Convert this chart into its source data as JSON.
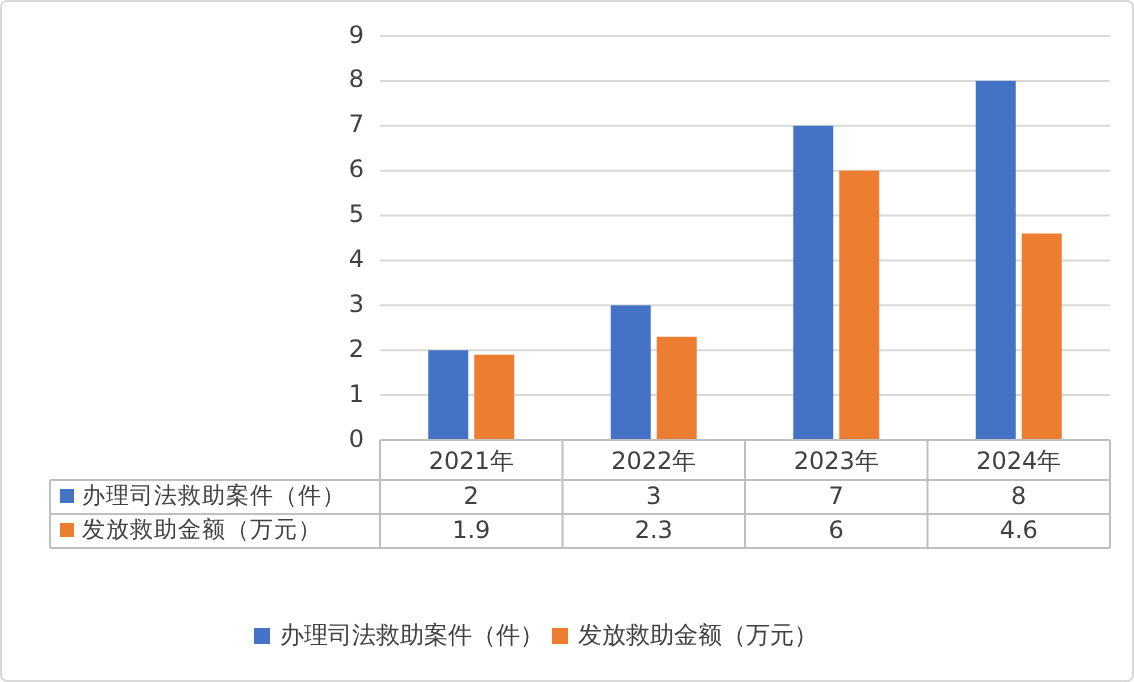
{
  "chart_data": {
    "type": "bar",
    "categories": [
      "2021年",
      "2022年",
      "2023年",
      "2024年"
    ],
    "series": [
      {
        "name": "办理司法救助案件（件）",
        "color": "#4472c4",
        "values": [
          2,
          3,
          7,
          8
        ]
      },
      {
        "name": "发放救助金额（万元）",
        "color": "#ed7d31",
        "values": [
          1.9,
          2.3,
          6,
          4.6
        ]
      }
    ],
    "ylim": [
      0,
      9
    ],
    "yticks": [
      0,
      1,
      2,
      3,
      4,
      5,
      6,
      7,
      8,
      9
    ],
    "grid": "y",
    "legend": "bottom",
    "data_labels": true
  }
}
